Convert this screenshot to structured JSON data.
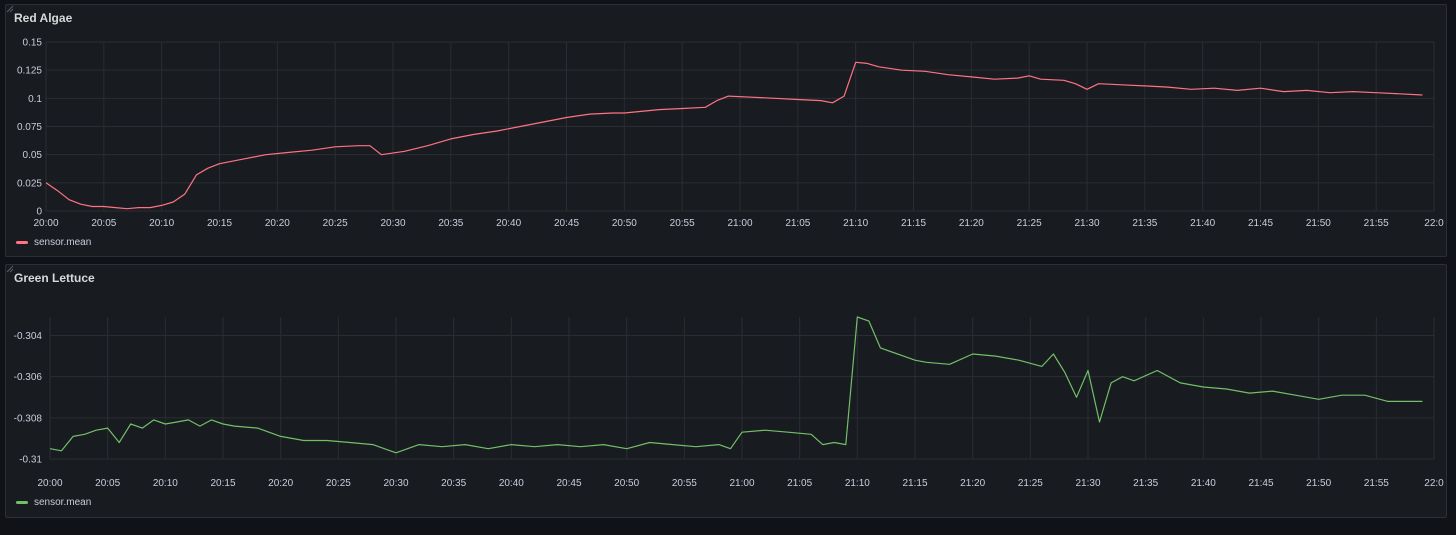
{
  "chart_data": [
    {
      "type": "line",
      "title": "Red Algae",
      "xlabel": "",
      "ylabel": "",
      "ylim": [
        0,
        0.15
      ],
      "yticks": [
        0.15,
        0.125,
        0.1,
        0.075,
        0.05,
        0.025,
        0
      ],
      "ytick_labels": [
        "0.15",
        "0.125",
        "0.1",
        "0.075",
        "0.05",
        "0.025",
        "0"
      ],
      "xticks": [
        "20:00",
        "20:05",
        "20:10",
        "20:15",
        "20:20",
        "20:25",
        "20:30",
        "20:35",
        "20:40",
        "20:45",
        "20:50",
        "20:55",
        "21:00",
        "21:05",
        "21:10",
        "21:15",
        "21:20",
        "21:25",
        "21:30",
        "21:35",
        "21:40",
        "21:45",
        "21:50",
        "21:55",
        "22:0"
      ],
      "grid": true,
      "legend_position": "bottom-left",
      "series": [
        {
          "name": "sensor.mean",
          "color": "#ff7383",
          "x": [
            "20:00",
            "20:01",
            "20:02",
            "20:03",
            "20:04",
            "20:05",
            "20:06",
            "20:07",
            "20:08",
            "20:09",
            "20:10",
            "20:11",
            "20:12",
            "20:13",
            "20:14",
            "20:15",
            "20:17",
            "20:19",
            "20:21",
            "20:23",
            "20:25",
            "20:27",
            "20:28",
            "20:29",
            "20:31",
            "20:33",
            "20:35",
            "20:37",
            "20:39",
            "20:41",
            "20:43",
            "20:45",
            "20:47",
            "20:49",
            "20:50",
            "20:51",
            "20:53",
            "20:55",
            "20:57",
            "20:58",
            "20:59",
            "21:01",
            "21:03",
            "21:05",
            "21:07",
            "21:08",
            "21:09",
            "21:10",
            "21:11",
            "21:12",
            "21:14",
            "21:16",
            "21:18",
            "21:20",
            "21:22",
            "21:24",
            "21:25",
            "21:26",
            "21:28",
            "21:29",
            "21:30",
            "21:31",
            "21:33",
            "21:35",
            "21:37",
            "21:39",
            "21:41",
            "21:43",
            "21:45",
            "21:47",
            "21:49",
            "21:51",
            "21:53",
            "21:55",
            "21:57",
            "21:59"
          ],
          "values": [
            0.025,
            0.018,
            0.01,
            0.006,
            0.004,
            0.004,
            0.003,
            0.002,
            0.003,
            0.003,
            0.005,
            0.008,
            0.015,
            0.032,
            0.038,
            0.042,
            0.046,
            0.05,
            0.052,
            0.054,
            0.057,
            0.058,
            0.058,
            0.05,
            0.053,
            0.058,
            0.064,
            0.068,
            0.071,
            0.075,
            0.079,
            0.083,
            0.086,
            0.087,
            0.087,
            0.088,
            0.09,
            0.091,
            0.092,
            0.098,
            0.102,
            0.101,
            0.1,
            0.099,
            0.098,
            0.096,
            0.102,
            0.132,
            0.131,
            0.128,
            0.125,
            0.124,
            0.121,
            0.119,
            0.117,
            0.118,
            0.12,
            0.117,
            0.116,
            0.113,
            0.108,
            0.113,
            0.112,
            0.111,
            0.11,
            0.108,
            0.109,
            0.107,
            0.109,
            0.106,
            0.107,
            0.105,
            0.106,
            0.105,
            0.104,
            0.103
          ]
        }
      ]
    },
    {
      "type": "line",
      "title": "Green Lettuce",
      "xlabel": "",
      "ylabel": "",
      "ylim": [
        -0.31,
        -0.3031
      ],
      "yticks": [
        -0.304,
        -0.306,
        -0.308,
        -0.31
      ],
      "ytick_labels": [
        "-0.304",
        "-0.306",
        "-0.308",
        "-0.31"
      ],
      "xticks": [
        "20:00",
        "20:05",
        "20:10",
        "20:15",
        "20:20",
        "20:25",
        "20:30",
        "20:35",
        "20:40",
        "20:45",
        "20:50",
        "20:55",
        "21:00",
        "21:05",
        "21:10",
        "21:15",
        "21:20",
        "21:25",
        "21:30",
        "21:35",
        "21:40",
        "21:45",
        "21:50",
        "21:55",
        "22:0"
      ],
      "grid": true,
      "legend_position": "bottom-left",
      "series": [
        {
          "name": "sensor.mean",
          "color": "#73bf69",
          "x": [
            "20:00",
            "20:01",
            "20:02",
            "20:03",
            "20:04",
            "20:05",
            "20:06",
            "20:07",
            "20:08",
            "20:09",
            "20:10",
            "20:11",
            "20:12",
            "20:13",
            "20:14",
            "20:15",
            "20:16",
            "20:18",
            "20:20",
            "20:22",
            "20:24",
            "20:26",
            "20:28",
            "20:30",
            "20:32",
            "20:34",
            "20:36",
            "20:38",
            "20:40",
            "20:42",
            "20:44",
            "20:46",
            "20:48",
            "20:50",
            "20:52",
            "20:54",
            "20:56",
            "20:58",
            "20:59",
            "21:00",
            "21:02",
            "21:04",
            "21:06",
            "21:07",
            "21:08",
            "21:09",
            "21:10",
            "21:11",
            "21:12",
            "21:13",
            "21:14",
            "21:15",
            "21:16",
            "21:18",
            "21:20",
            "21:22",
            "21:24",
            "21:26",
            "21:27",
            "21:28",
            "21:29",
            "21:30",
            "21:31",
            "21:32",
            "21:33",
            "21:34",
            "21:36",
            "21:38",
            "21:40",
            "21:42",
            "21:44",
            "21:46",
            "21:48",
            "21:50",
            "21:52",
            "21:54",
            "21:56",
            "21:58",
            "21:59"
          ],
          "values": [
            -0.3095,
            -0.3096,
            -0.3089,
            -0.3088,
            -0.3086,
            -0.3085,
            -0.3092,
            -0.3083,
            -0.3085,
            -0.3081,
            -0.3083,
            -0.3082,
            -0.3081,
            -0.3084,
            -0.3081,
            -0.3083,
            -0.3084,
            -0.3085,
            -0.3089,
            -0.3091,
            -0.3091,
            -0.3092,
            -0.3093,
            -0.3097,
            -0.3093,
            -0.3094,
            -0.3093,
            -0.3095,
            -0.3093,
            -0.3094,
            -0.3093,
            -0.3094,
            -0.3093,
            -0.3095,
            -0.3092,
            -0.3093,
            -0.3094,
            -0.3093,
            -0.3095,
            -0.3087,
            -0.3086,
            -0.3087,
            -0.3088,
            -0.3093,
            -0.3092,
            -0.3093,
            -0.3031,
            -0.3033,
            -0.3046,
            -0.3048,
            -0.305,
            -0.3052,
            -0.3053,
            -0.3054,
            -0.3049,
            -0.305,
            -0.3052,
            -0.3055,
            -0.3049,
            -0.3058,
            -0.307,
            -0.3057,
            -0.3082,
            -0.3063,
            -0.306,
            -0.3062,
            -0.3057,
            -0.3063,
            -0.3065,
            -0.3066,
            -0.3068,
            -0.3067,
            -0.3069,
            -0.3071,
            -0.3069,
            -0.3069,
            -0.3072,
            -0.3072,
            -0.3072
          ]
        }
      ]
    }
  ]
}
